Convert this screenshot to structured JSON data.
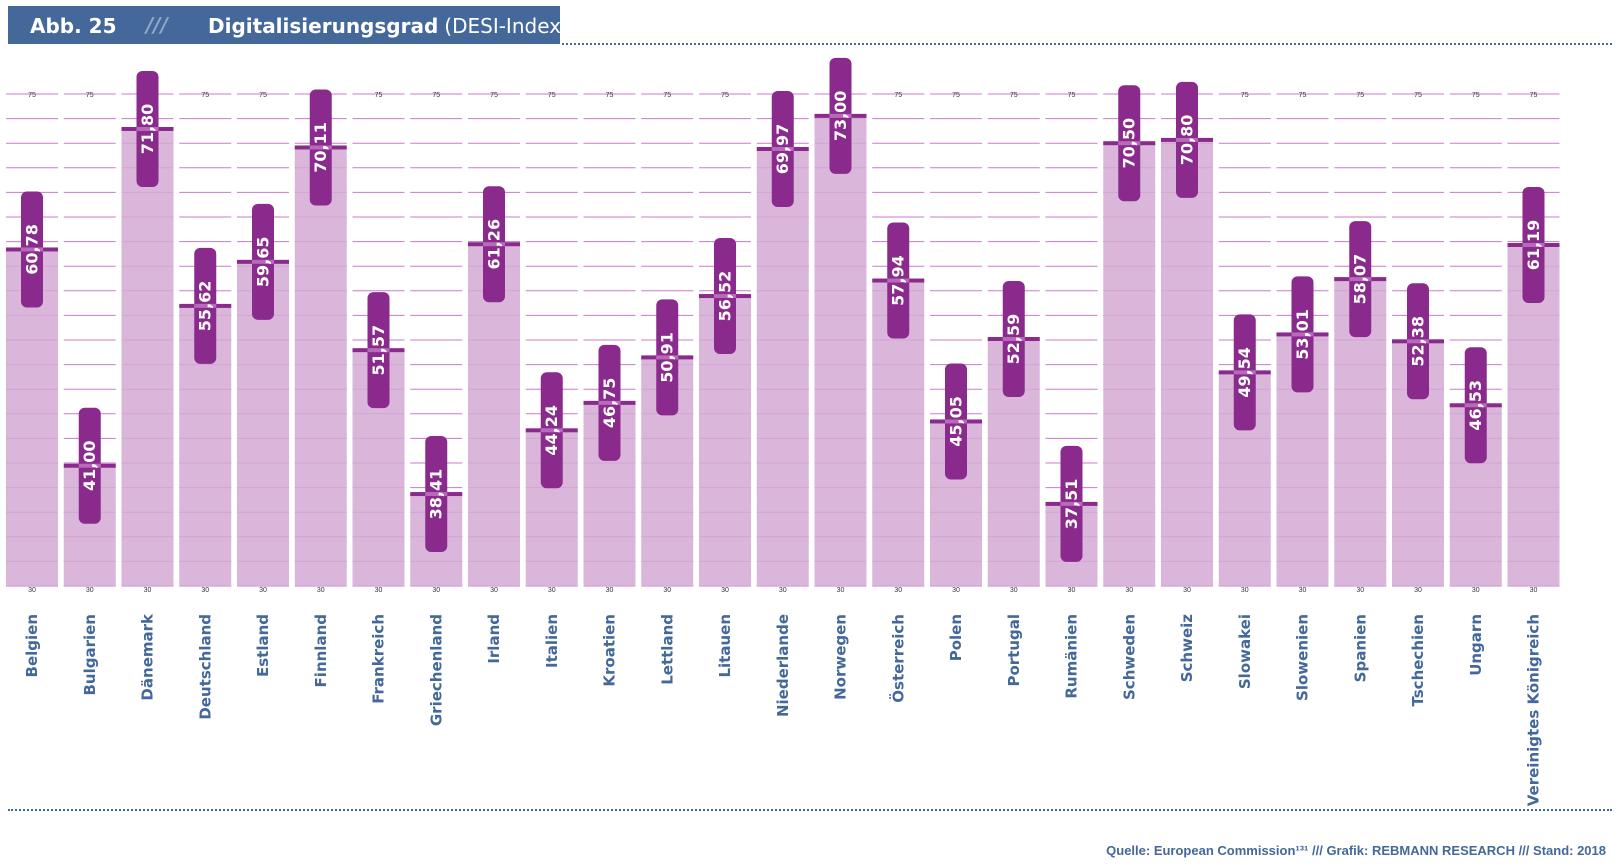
{
  "header": {
    "figure_label": "Abb. 25",
    "slashes": "///",
    "title": "Digitalisierungsgrad",
    "subtitle": "(DESI-Index)"
  },
  "footer": {
    "source": "Quelle: European Commission¹³¹ /// Grafik: REBMANN RESEARCH /// Stand: 2018"
  },
  "colors": {
    "header_bg": "#44689a",
    "bar_fill": "#d4aad4",
    "value_box": "#8a2a8c",
    "grid": "#c77bc9",
    "country_text": "#44689a"
  },
  "chart_data": {
    "type": "bar",
    "title": "Digitalisierungsgrad (DESI-Index)",
    "ylim": [
      30,
      75
    ],
    "tick_top": "75",
    "tick_bottom": "30",
    "categories": [
      "Belgien",
      "Bulgarien",
      "Dänemark",
      "Deutschland",
      "Estland",
      "Finnland",
      "Frankreich",
      "Griechenland",
      "Irland",
      "Italien",
      "Kroatien",
      "Lettland",
      "Litauen",
      "Niederlande",
      "Norwegen",
      "Österreich",
      "Polen",
      "Portugal",
      "Rumänien",
      "Schweden",
      "Schweiz",
      "Slowakei",
      "Slowenien",
      "Spanien",
      "Tschechien",
      "Ungarn",
      "Vereinigtes Königreich"
    ],
    "values": [
      60.78,
      41.0,
      71.8,
      55.62,
      59.65,
      70.11,
      51.57,
      38.41,
      61.26,
      44.24,
      46.75,
      50.91,
      56.52,
      69.97,
      73.0,
      57.94,
      45.05,
      52.59,
      37.51,
      70.5,
      70.8,
      49.54,
      53.01,
      58.07,
      52.38,
      46.53,
      61.19
    ],
    "value_labels": [
      "60,78",
      "41,00",
      "71,80",
      "55,62",
      "59,65",
      "70,11",
      "51,57",
      "38,41",
      "61,26",
      "44,24",
      "46,75",
      "50,91",
      "56,52",
      "69,97",
      "73,00",
      "57,94",
      "45,05",
      "52,59",
      "37,51",
      "70,50",
      "70,80",
      "49,54",
      "53,01",
      "58,07",
      "52,38",
      "46,53",
      "61,19"
    ]
  }
}
